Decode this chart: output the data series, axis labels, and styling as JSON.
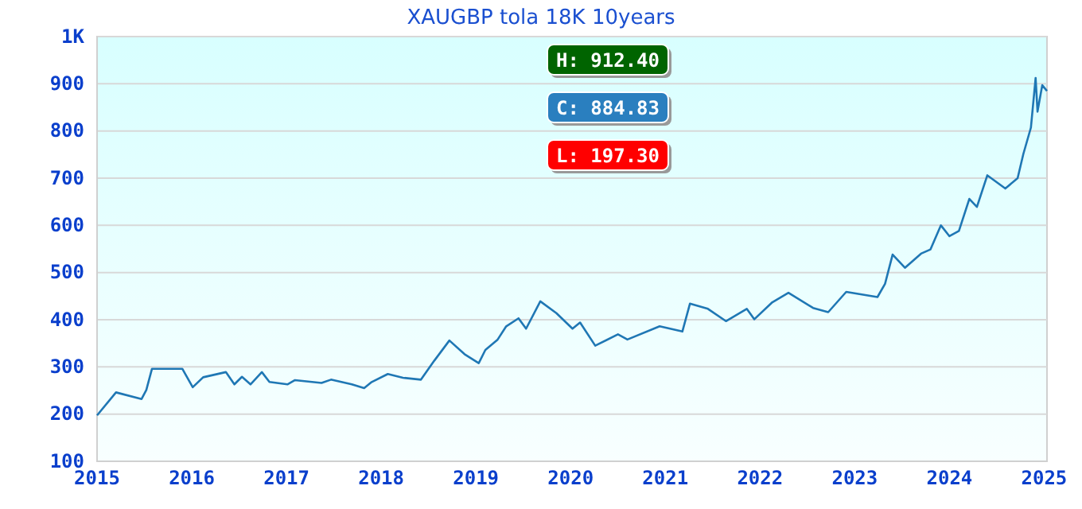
{
  "chart_data": {
    "type": "line",
    "title": "XAUGBP tola 18K 10years",
    "annotations": [
      "H: 912.40",
      "C: 884.83",
      "L: 197.30"
    ],
    "xlim": [
      2015,
      2025.03
    ],
    "xticks": [
      2015,
      2016,
      2017,
      2018,
      2019,
      2020,
      2021,
      2022,
      2023,
      2024,
      2025
    ],
    "ylim": [
      100,
      1000
    ],
    "yticks": [
      100,
      200,
      300,
      400,
      500,
      600,
      700,
      800,
      900,
      {
        "value": 1000,
        "label": "1K"
      }
    ],
    "grid": "y",
    "marker": "none",
    "line_style": "solid",
    "series": [
      {
        "color": "#1f77b4",
        "x": [
          2015.0,
          2015.2,
          2015.47,
          2015.52,
          2015.58,
          2015.9,
          2016.01,
          2016.12,
          2016.36,
          2016.45,
          2016.53,
          2016.62,
          2016.74,
          2016.82,
          2017.01,
          2017.09,
          2017.37,
          2017.47,
          2017.69,
          2017.82,
          2017.9,
          2018.07,
          2018.23,
          2018.42,
          2018.56,
          2018.72,
          2018.88,
          2019.03,
          2019.1,
          2019.23,
          2019.32,
          2019.45,
          2019.53,
          2019.68,
          2019.85,
          2020.02,
          2020.1,
          2020.26,
          2020.5,
          2020.6,
          2020.94,
          2021.18,
          2021.26,
          2021.45,
          2021.64,
          2021.86,
          2021.94,
          2022.13,
          2022.3,
          2022.56,
          2022.72,
          2022.91,
          2023.24,
          2023.32,
          2023.4,
          2023.53,
          2023.7,
          2023.8,
          2023.91,
          2024.0,
          2024.1,
          2024.21,
          2024.29,
          2024.4,
          2024.59,
          2024.72,
          2024.78,
          2024.86,
          2024.91,
          2024.93,
          2024.98,
          2025.03
        ],
        "values": [
          197.3,
          246,
          232,
          251,
          296,
          296,
          257,
          278,
          289,
          263,
          279,
          263,
          289,
          268,
          263,
          272,
          266,
          273,
          263,
          255,
          268,
          285,
          277,
          273,
          313,
          356,
          327,
          308,
          336,
          358,
          386,
          403,
          381,
          439,
          414,
          381,
          394,
          345,
          369,
          358,
          386,
          375,
          434,
          423,
          397,
          423,
          401,
          437,
          457,
          425,
          416,
          459,
          448,
          476,
          538,
          510,
          540,
          549,
          600,
          577,
          588,
          656,
          639,
          706,
          678,
          700,
          751,
          807,
          912.4,
          841,
          897,
          884.83
        ]
      }
    ]
  }
}
